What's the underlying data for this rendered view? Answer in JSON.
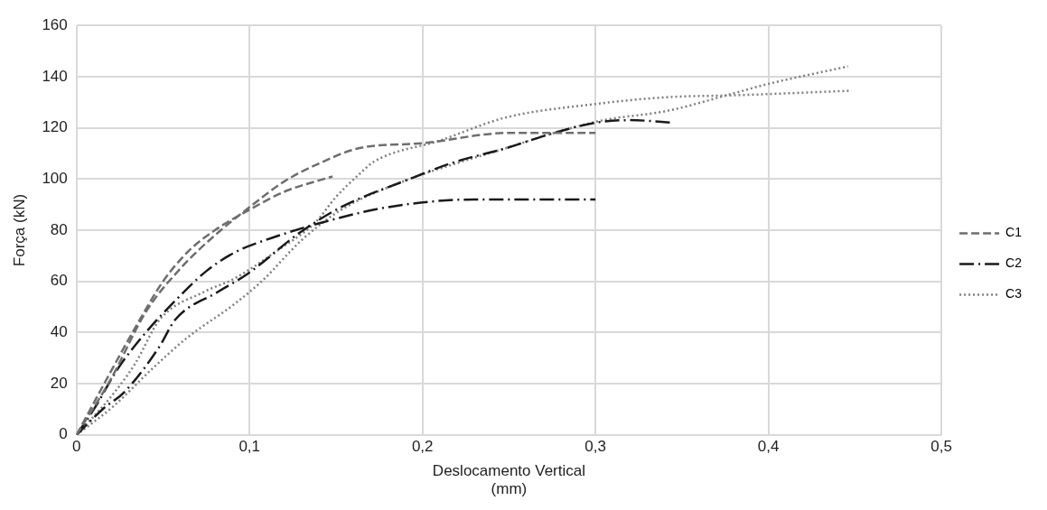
{
  "chart_data": {
    "type": "line",
    "xlabel": "Deslocamento Vertical\n(mm)",
    "ylabel": "Força (kN)",
    "xlim": [
      0,
      0.5
    ],
    "xticks": [
      0,
      {
        "value": 0.1,
        "label": "0,1"
      },
      {
        "value": 0.2,
        "label": "0,2"
      },
      {
        "value": 0.3,
        "label": "0,3"
      },
      {
        "value": 0.4,
        "label": "0,4"
      },
      {
        "value": 0.5,
        "label": "0,5"
      }
    ],
    "ylim": [
      0,
      160
    ],
    "yticks": [
      0,
      20,
      40,
      60,
      80,
      100,
      120,
      140,
      160
    ],
    "grid": true,
    "legend": "right",
    "marker": "none",
    "series": [
      {
        "name": "C1",
        "color": "#6e6e6e",
        "line_style": "dashed",
        "x": [
          0,
          0.02,
          0.034,
          0.05,
          0.065,
          0.08,
          0.1,
          0.12,
          0.148
        ],
        "values": [
          0,
          25,
          42,
          60,
          72,
          80,
          88,
          95,
          101
        ]
      },
      {
        "color": "#6e6e6e",
        "line_style": "dashed",
        "x": [
          0,
          0.02,
          0.04,
          0.06,
          0.08,
          0.1,
          0.12,
          0.14,
          0.163,
          0.2,
          0.25,
          0.3
        ],
        "values": [
          0,
          22,
          48,
          65,
          78,
          89,
          99,
          106,
          112,
          114,
          118,
          118
        ]
      },
      {
        "name": "C2",
        "color": "#1a1a1a",
        "line_style": "dashdot",
        "x": [
          0,
          0.01,
          0.024,
          0.04,
          0.055,
          0.075,
          0.092,
          0.113,
          0.142,
          0.18,
          0.23,
          0.27,
          0.3
        ],
        "values": [
          0,
          10,
          26,
          40,
          51,
          64,
          71.5,
          77,
          83,
          89,
          92,
          92,
          92
        ]
      },
      {
        "color": "#1a1a1a",
        "line_style": "dashdot",
        "x": [
          0,
          0.015,
          0.028,
          0.048,
          0.057,
          0.082,
          0.099,
          0.129,
          0.153,
          0.191,
          0.219,
          0.248,
          0.276,
          0.3,
          0.32,
          0.345
        ],
        "values": [
          0,
          10,
          17,
          34.6,
          45,
          56,
          63,
          79,
          89,
          99.6,
          106.7,
          112,
          118,
          122,
          123,
          122
        ]
      },
      {
        "name": "C3",
        "color": "#808080",
        "line_style": "dotted",
        "x": [
          0,
          0.02,
          0.034,
          0.048,
          0.074,
          0.091,
          0.116,
          0.138,
          0.15,
          0.163,
          0.172,
          0.21,
          0.248,
          0.3,
          0.342,
          0.38,
          0.448
        ],
        "values": [
          0,
          15,
          28,
          45,
          56,
          61,
          72,
          83,
          93,
          101.6,
          106.8,
          115,
          124,
          129.3,
          132,
          132.7,
          134.5
        ]
      },
      {
        "color": "#808080",
        "line_style": "dotted",
        "x": [
          0,
          0.021,
          0.044,
          0.064,
          0.091,
          0.107,
          0.13,
          0.153,
          0.191,
          0.219,
          0.248,
          0.276,
          0.304,
          0.342,
          0.38,
          0.399,
          0.446
        ],
        "values": [
          0,
          11,
          26,
          38,
          51,
          60,
          76,
          88,
          99.6,
          106,
          112,
          118,
          122.9,
          126.7,
          133.5,
          137,
          144
        ]
      }
    ]
  }
}
